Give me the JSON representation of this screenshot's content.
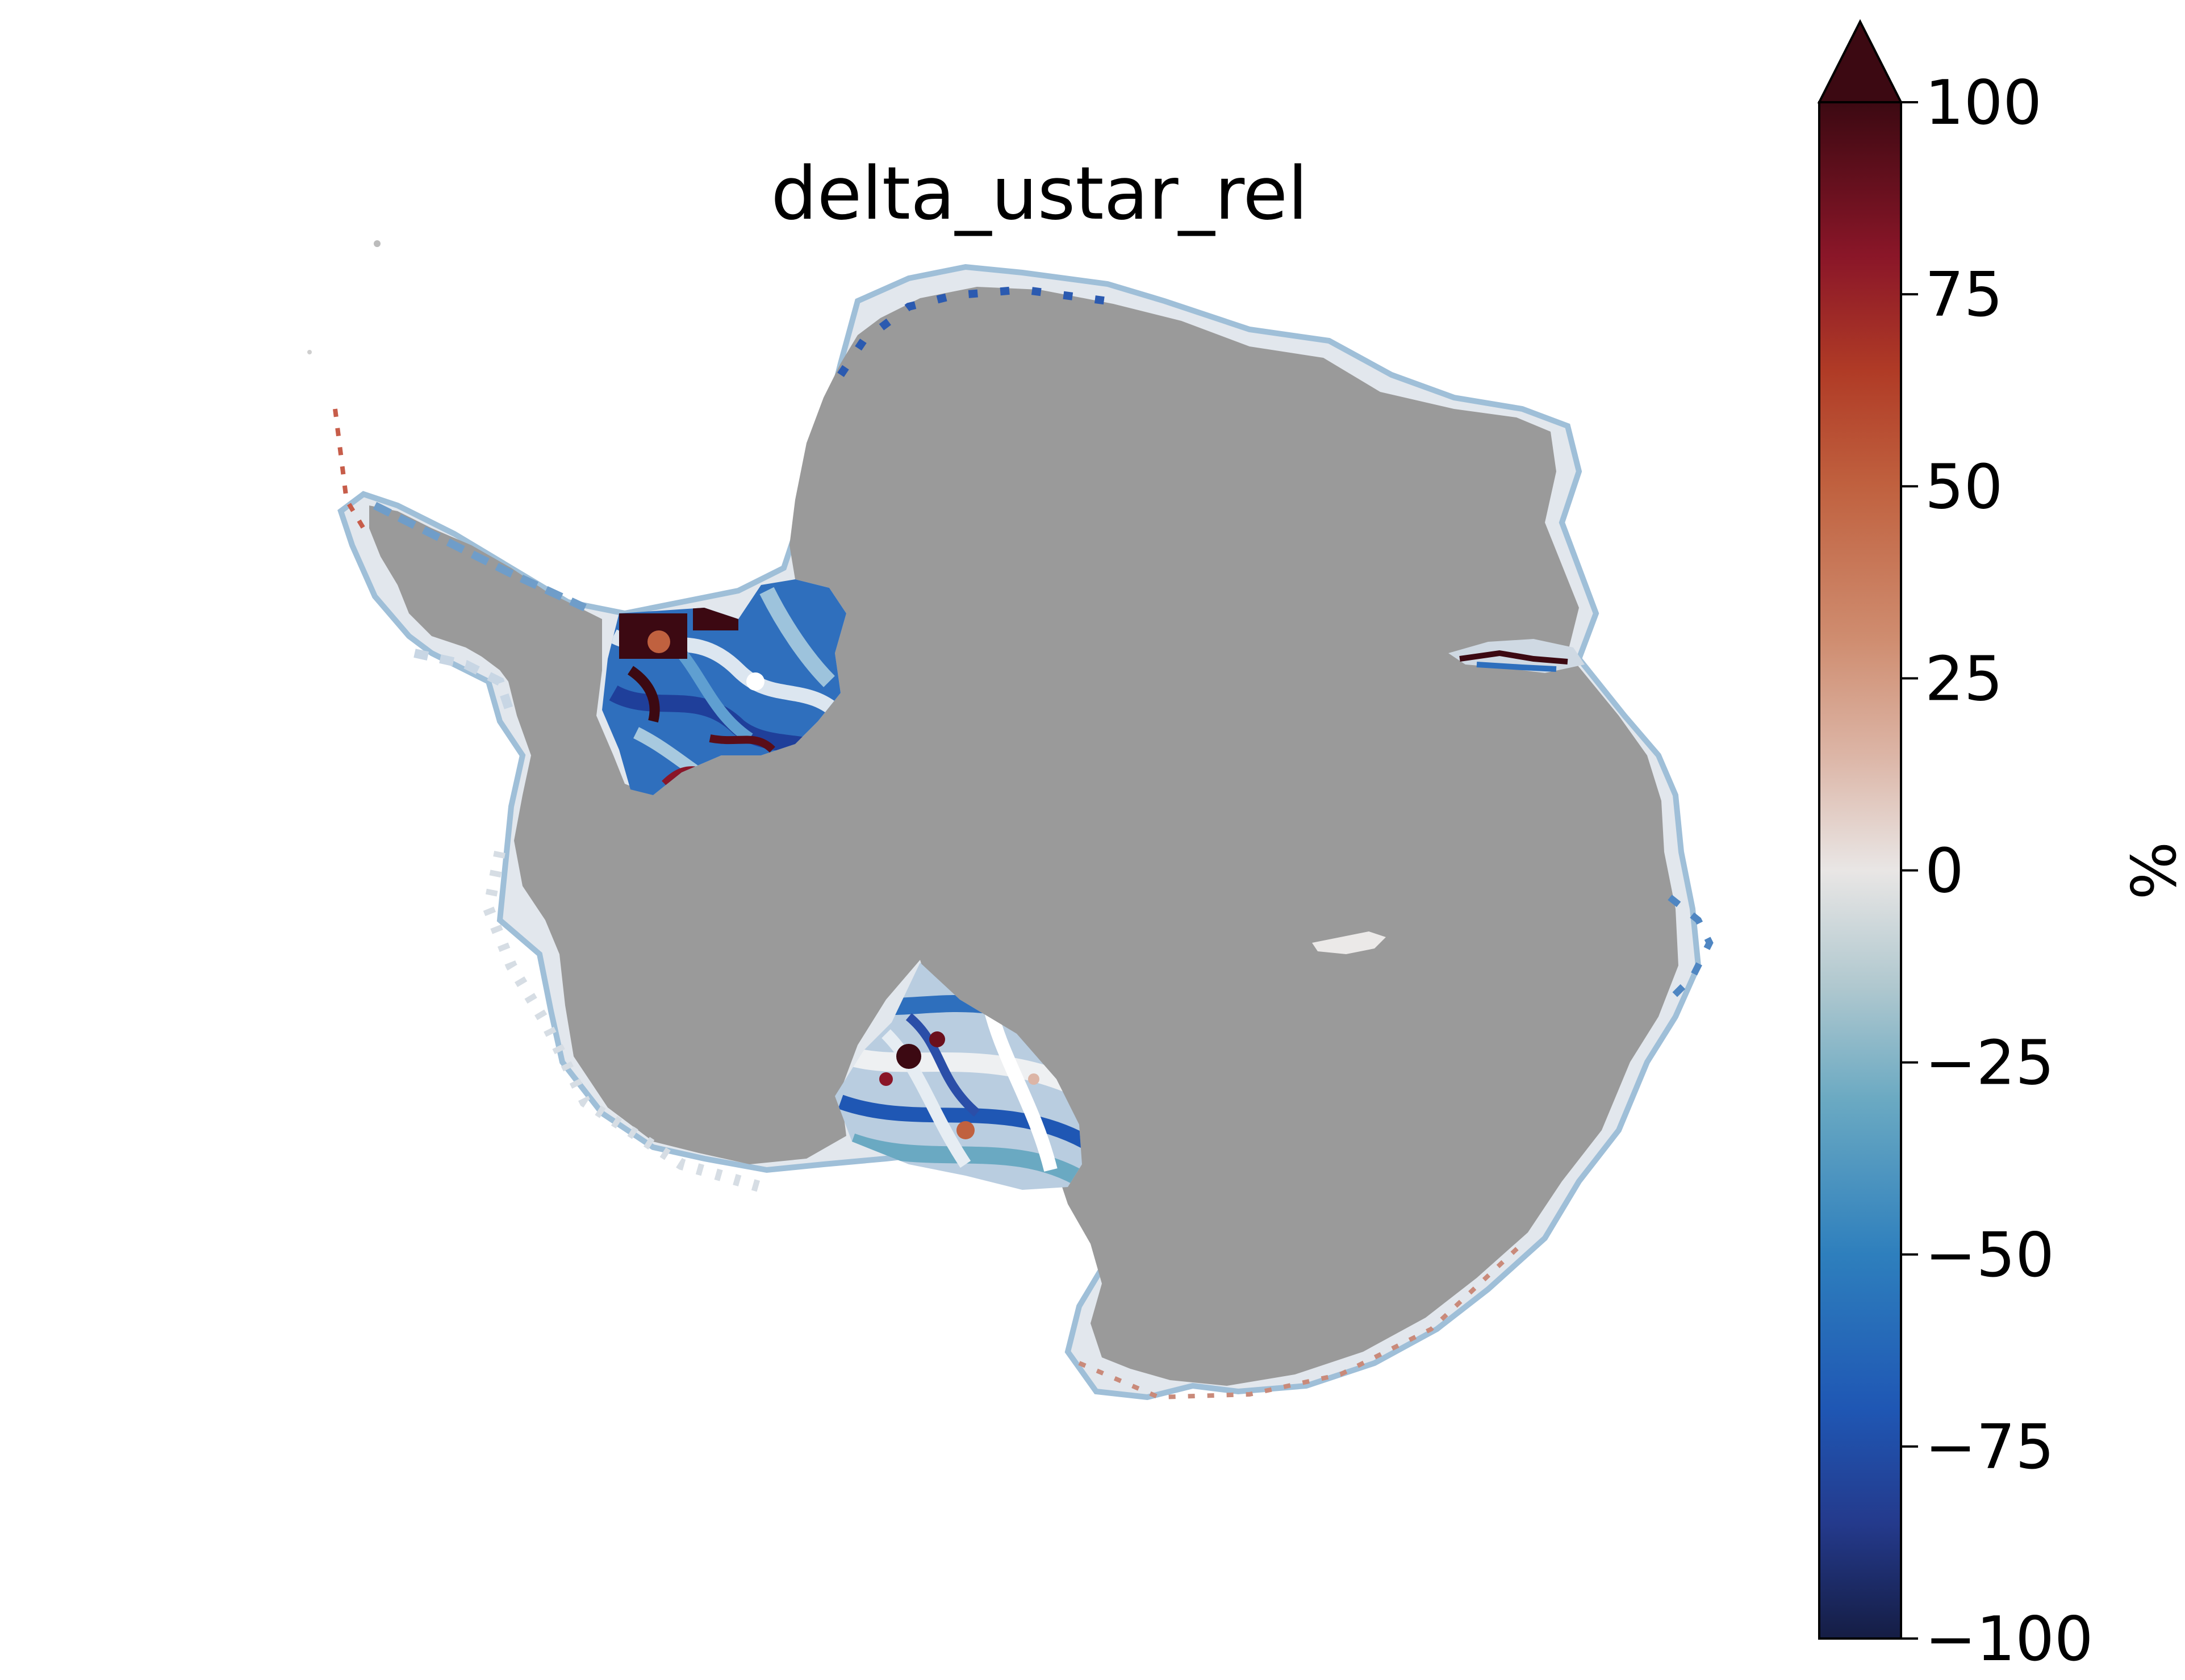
{
  "map": {
    "title": "delta_ustar_rel",
    "land_color": "#9a9a9a",
    "background_color": "#ffffff"
  },
  "colorbar": {
    "label": "%",
    "min": -100,
    "max": 100,
    "extend": "max",
    "ticks": [
      {
        "value": 100,
        "label": "100"
      },
      {
        "value": 75,
        "label": "75"
      },
      {
        "value": 50,
        "label": "50"
      },
      {
        "value": 25,
        "label": "25"
      },
      {
        "value": 0,
        "label": "0"
      },
      {
        "value": -25,
        "label": "−25"
      },
      {
        "value": -50,
        "label": "−50"
      },
      {
        "value": -75,
        "label": "−75"
      },
      {
        "value": -100,
        "label": "−100"
      }
    ],
    "stops": [
      {
        "value": -100,
        "color": "#151d44"
      },
      {
        "value": -85,
        "color": "#243a8c"
      },
      {
        "value": -70,
        "color": "#1f57b4"
      },
      {
        "value": -50,
        "color": "#2e7fbd"
      },
      {
        "value": -30,
        "color": "#6aa9c2"
      },
      {
        "value": -15,
        "color": "#b0c8cf"
      },
      {
        "value": 0,
        "color": "#e9e6e5"
      },
      {
        "value": 15,
        "color": "#dcb5a6"
      },
      {
        "value": 30,
        "color": "#cf8d70"
      },
      {
        "value": 50,
        "color": "#c0613f"
      },
      {
        "value": 65,
        "color": "#b03b26"
      },
      {
        "value": 80,
        "color": "#8a1628"
      },
      {
        "value": 100,
        "color": "#3c0912"
      }
    ]
  }
}
